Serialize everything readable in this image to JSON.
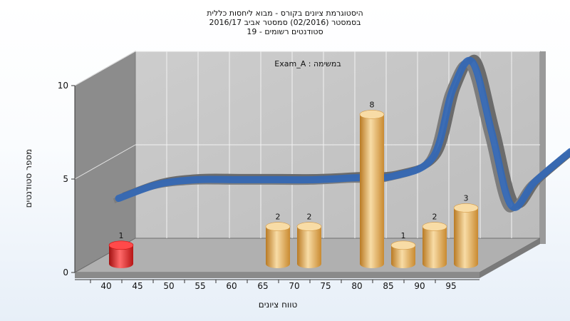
{
  "chart_data": {
    "type": "bar",
    "title": [
      "היסטוגרמת ציונים בקורס - מבוא ליחסות כללית",
      "בסמסטר  (02/2016)  סמסטר אביב 2016/17",
      "סטודנטים רשומים - 19"
    ],
    "annotation": "Exam_A : במשימה",
    "xlabel": "טווח ציונים",
    "ylabel": "מספר סטודנטים",
    "ylim": [
      0,
      10
    ],
    "yticks": [
      0,
      5,
      10
    ],
    "categories": [
      "40",
      "45",
      "50",
      "55",
      "60",
      "65",
      "70",
      "75",
      "80",
      "85",
      "90",
      "95"
    ],
    "values": [
      1,
      0,
      0,
      0,
      0,
      2,
      2,
      0,
      8,
      1,
      2,
      3
    ],
    "curve": [
      {
        "x": 40,
        "y": 2.0
      },
      {
        "x": 45,
        "y": 2.75
      },
      {
        "x": 50,
        "y": 3.0
      },
      {
        "x": 55,
        "y": 3.0
      },
      {
        "x": 60,
        "y": 3.0
      },
      {
        "x": 65,
        "y": 3.0
      },
      {
        "x": 70,
        "y": 3.1
      },
      {
        "x": 75,
        "y": 3.2
      },
      {
        "x": 80,
        "y": 4.2
      },
      {
        "x": 82.5,
        "y": 7.8
      },
      {
        "x": 85,
        "y": 9.3
      },
      {
        "x": 87.5,
        "y": 5.5
      },
      {
        "x": 90,
        "y": 1.6
      },
      {
        "x": 93,
        "y": 2.9
      },
      {
        "x": 97.5,
        "y": 4.5
      }
    ],
    "grid": true,
    "colors": {
      "bar": "#e6a94c",
      "bar_highlight": "#f8dca6",
      "bar_first": "#dd1f1f",
      "ribbon_top": "#3568b4",
      "ribbon_side": "#707070",
      "back_wall": "#c5c5c5",
      "side_wall": "#8f8f8f",
      "floor": "#b3b3b3"
    }
  }
}
